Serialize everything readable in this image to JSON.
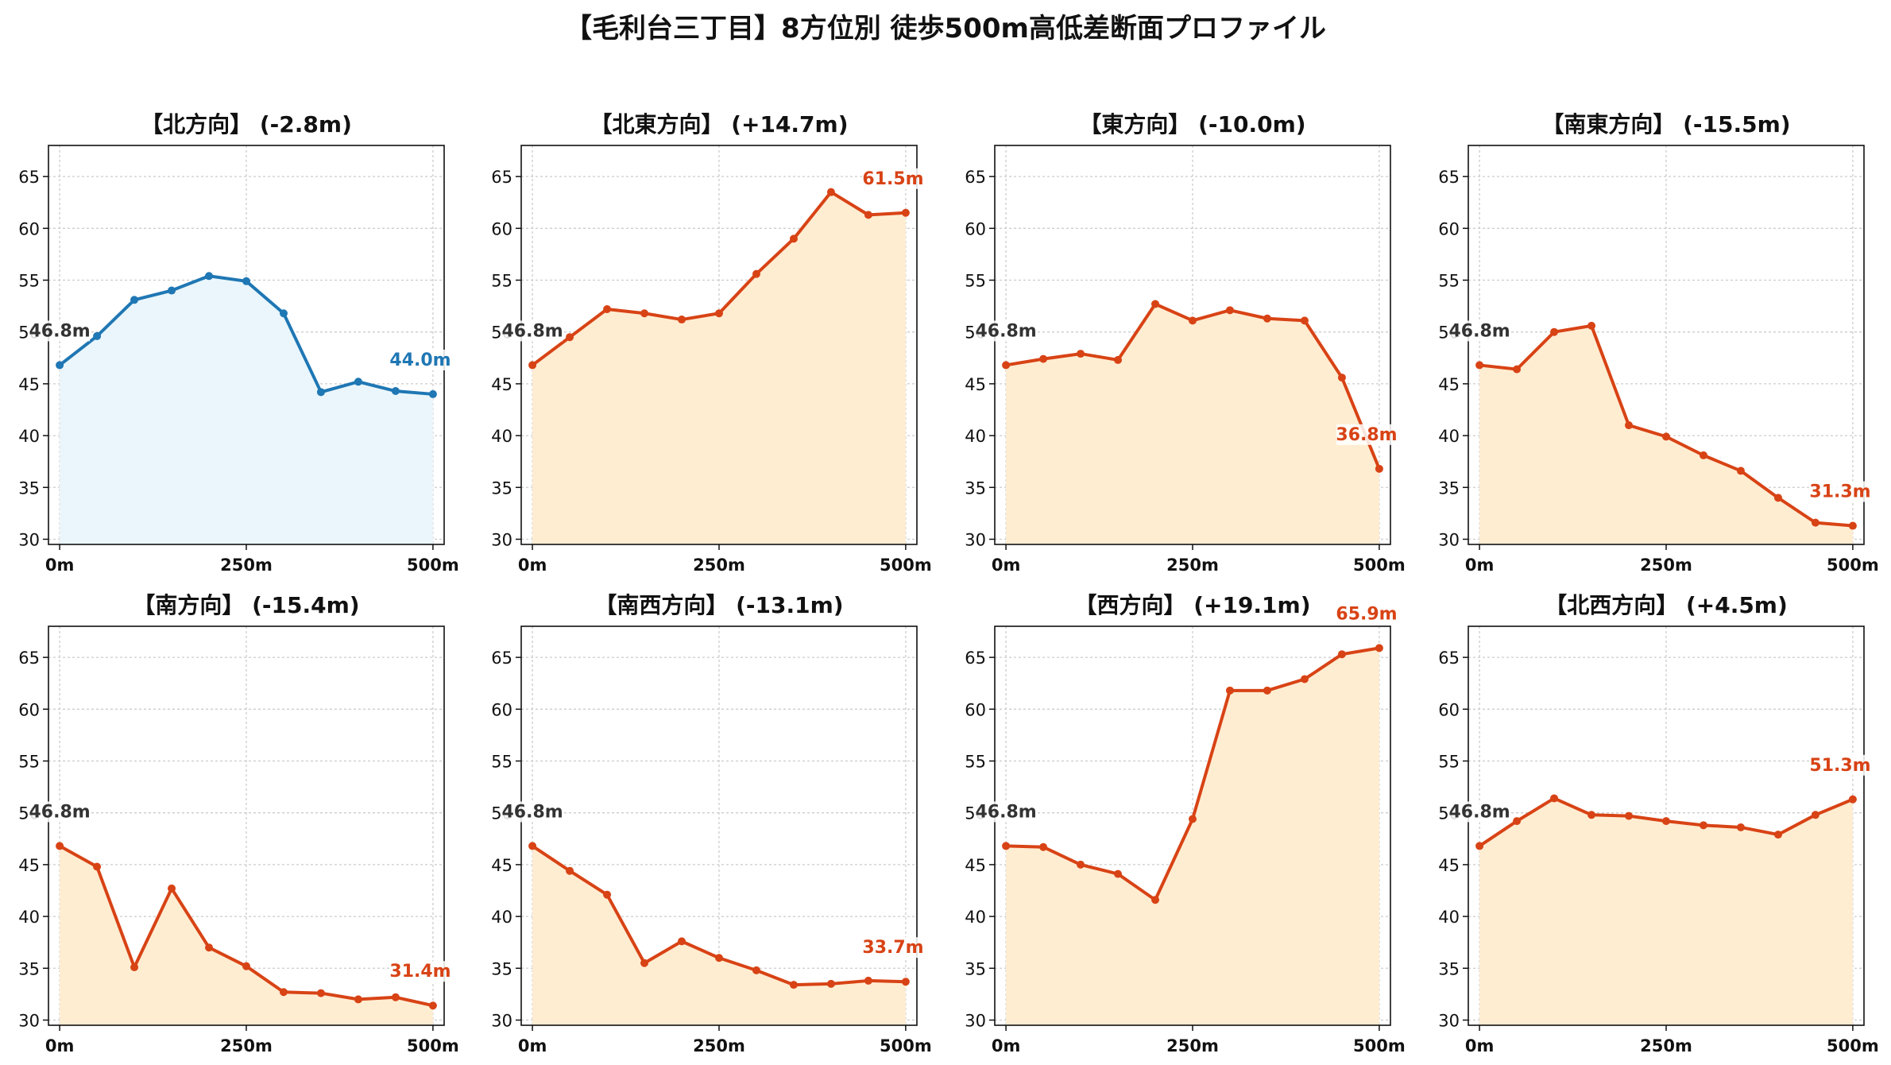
{
  "title": "【毛利台三丁目】8方位別 徒歩500m高低差断面プロファイル",
  "colors": {
    "up": "#1f77b4",
    "down": "#d84315",
    "fill_up": "#eaf6fb",
    "fill_down": "#ffedd2",
    "start_label": "#333333",
    "grid": "#cccccc"
  },
  "axis": {
    "ylim": [
      29.5,
      68
    ],
    "yticks": [
      30,
      35,
      40,
      45,
      50,
      55,
      60,
      65
    ],
    "xlim": [
      -15,
      515
    ],
    "xticks": [
      0,
      250,
      500
    ],
    "xtick_labels": [
      "0m",
      "250m",
      "500m"
    ]
  },
  "chart_data": [
    {
      "type": "area",
      "title": "【北方向】 (-2.8m)",
      "trend": "up",
      "x": [
        0,
        50,
        100,
        150,
        200,
        250,
        300,
        350,
        400,
        450,
        500
      ],
      "y": [
        46.8,
        49.6,
        53.1,
        54.0,
        55.4,
        54.9,
        51.8,
        44.2,
        45.2,
        44.3,
        44.0
      ],
      "start_label": "46.8m",
      "end_label": "44.0m"
    },
    {
      "type": "area",
      "title": "【北東方向】 (+14.7m)",
      "trend": "down",
      "x": [
        0,
        50,
        100,
        150,
        200,
        250,
        300,
        350,
        400,
        450,
        500
      ],
      "y": [
        46.8,
        49.5,
        52.2,
        51.8,
        51.2,
        51.8,
        55.6,
        59.0,
        63.5,
        61.3,
        61.5
      ],
      "start_label": "46.8m",
      "end_label": "61.5m"
    },
    {
      "type": "area",
      "title": "【東方向】 (-10.0m)",
      "trend": "down",
      "x": [
        0,
        50,
        100,
        150,
        200,
        250,
        300,
        350,
        400,
        450,
        500
      ],
      "y": [
        46.8,
        47.4,
        47.9,
        47.3,
        52.7,
        51.1,
        52.1,
        51.3,
        51.1,
        45.6,
        36.8
      ],
      "start_label": "46.8m",
      "end_label": "36.8m"
    },
    {
      "type": "area",
      "title": "【南東方向】 (-15.5m)",
      "trend": "down",
      "x": [
        0,
        50,
        100,
        150,
        200,
        250,
        300,
        350,
        400,
        450,
        500
      ],
      "y": [
        46.8,
        46.4,
        50.0,
        50.6,
        41.0,
        39.9,
        38.1,
        36.6,
        34.0,
        31.6,
        31.3
      ],
      "start_label": "46.8m",
      "end_label": "31.3m"
    },
    {
      "type": "area",
      "title": "【南方向】 (-15.4m)",
      "trend": "down",
      "x": [
        0,
        50,
        100,
        150,
        200,
        250,
        300,
        350,
        400,
        450,
        500
      ],
      "y": [
        46.8,
        44.8,
        35.1,
        42.7,
        37.0,
        35.2,
        32.7,
        32.6,
        32.0,
        32.2,
        31.4
      ],
      "start_label": "46.8m",
      "end_label": "31.4m"
    },
    {
      "type": "area",
      "title": "【南西方向】 (-13.1m)",
      "trend": "down",
      "x": [
        0,
        50,
        100,
        150,
        200,
        250,
        300,
        350,
        400,
        450,
        500
      ],
      "y": [
        46.8,
        44.4,
        42.1,
        35.5,
        37.6,
        36.0,
        34.8,
        33.4,
        33.5,
        33.8,
        33.7
      ],
      "start_label": "46.8m",
      "end_label": "33.7m"
    },
    {
      "type": "area",
      "title": "【西方向】 (+19.1m)",
      "trend": "down",
      "x": [
        0,
        50,
        100,
        150,
        200,
        250,
        300,
        350,
        400,
        450,
        500
      ],
      "y": [
        46.8,
        46.7,
        45.0,
        44.1,
        41.6,
        49.4,
        61.8,
        61.8,
        62.9,
        65.3,
        65.9
      ],
      "start_label": "46.8m",
      "end_label": "65.9m"
    },
    {
      "type": "area",
      "title": "【北西方向】 (+4.5m)",
      "trend": "down",
      "x": [
        0,
        50,
        100,
        150,
        200,
        250,
        300,
        350,
        400,
        450,
        500
      ],
      "y": [
        46.8,
        49.2,
        51.4,
        49.8,
        49.7,
        49.2,
        48.8,
        48.6,
        47.9,
        49.8,
        51.3
      ],
      "start_label": "46.8m",
      "end_label": "51.3m"
    }
  ]
}
